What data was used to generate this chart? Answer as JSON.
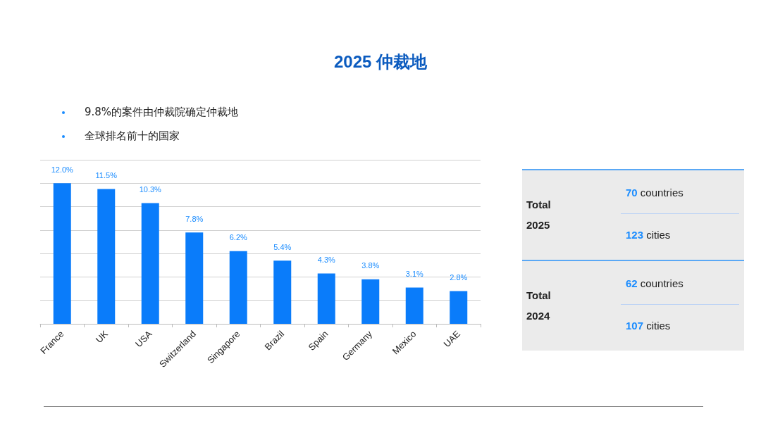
{
  "chart_data": [
    {
      "type": "bar",
      "title": "2025 仲裁地",
      "annotations": [
        "9.8%的案件由仲裁院确定仲裁地",
        "全球排名前十的国家"
      ],
      "categories": [
        "France",
        "UK",
        "USA",
        "Switzerland",
        "Singapore",
        "Brazil",
        "Spain",
        "Germany",
        "Mexico",
        "UAE"
      ],
      "values": [
        12.0,
        11.5,
        10.3,
        7.8,
        6.2,
        5.4,
        4.3,
        3.8,
        3.1,
        2.8
      ],
      "value_labels": [
        "12.0%",
        "11.5%",
        "10.3%",
        "7.8%",
        "6.2%",
        "5.4%",
        "4.3%",
        "3.8%",
        "3.1%",
        "2.8%"
      ],
      "color": "#0a7cfa",
      "ylim": [
        0,
        14
      ],
      "yticks": [
        {
          "value": 0,
          "label": null
        },
        {
          "value": 2,
          "label": null
        },
        {
          "value": 4,
          "label": null
        },
        {
          "value": 6,
          "label": null
        },
        {
          "value": 8,
          "label": null
        },
        {
          "value": 10,
          "label": null
        },
        {
          "value": 12,
          "label": null
        },
        {
          "value": 14,
          "label": null
        }
      ],
      "tick_labels": "x",
      "grid": "y"
    },
    {
      "type": "other",
      "annotations": [
        "Total 2025",
        "70 countries",
        "123 cities",
        "Total 2024",
        "62 countries",
        "107 cities"
      ]
    }
  ]
}
